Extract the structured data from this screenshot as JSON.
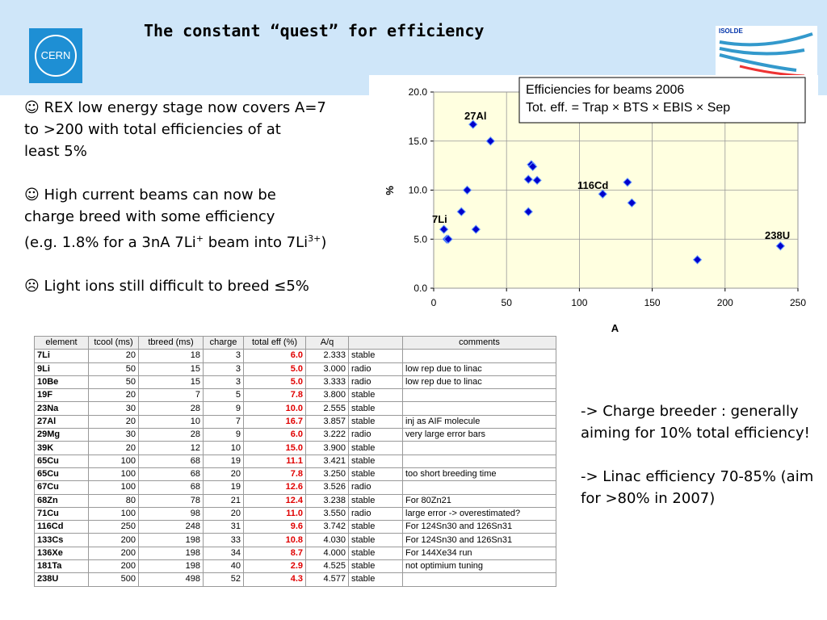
{
  "title": "The constant “quest” for efficiency",
  "logos": {
    "cern": "CERN",
    "isolde": "ISOLDE"
  },
  "bullets": [
    {
      "lines": [
        "☺ REX low energy stage now covers A=7",
        "to >200 with total efficiencies of at",
        "least 5%"
      ]
    },
    {
      "lines": [
        "☺ High current beams can now be",
        "charge breed with some efficiency"
      ],
      "last": [
        "(e.g. 1.8% for a 3nA 7Li",
        "+",
        " beam into 7Li",
        "3+",
        ")"
      ]
    },
    {
      "lines": [
        "☹ Light ions still difficult to breed ≤5%"
      ]
    }
  ],
  "chart_data": {
    "type": "scatter",
    "legend_lines": [
      "Efficiencies for beams 2006",
      "Tot. eff. = Trap × BTS × EBIS × Sep"
    ],
    "xlabel": "A",
    "ylabel": "%",
    "x": [
      7,
      9,
      10,
      19,
      23,
      27,
      29,
      39,
      65,
      65,
      67,
      68,
      71,
      116,
      133,
      136,
      181,
      238
    ],
    "series": [
      {
        "name": "Efficiencies for beams 2006",
        "color": "#0000cc",
        "values": [
          6.0,
          5.0,
          5.0,
          7.8,
          10.0,
          16.7,
          6.0,
          15.0,
          11.1,
          7.8,
          12.6,
          12.4,
          11.0,
          9.6,
          10.8,
          8.7,
          2.9,
          4.3
        ]
      }
    ],
    "xlim": [
      0,
      250
    ],
    "xticks": [
      0,
      50,
      100,
      150,
      200,
      250
    ],
    "ylim": [
      0,
      20
    ],
    "yticks": [
      {
        "value": 0,
        "label": "0.0"
      },
      {
        "value": 5,
        "label": "5.0"
      },
      {
        "value": 10,
        "label": "10.0"
      },
      {
        "value": 15,
        "label": "15.0"
      },
      {
        "value": 20,
        "label": "20.0"
      }
    ],
    "grid": true,
    "annotations": [
      "27Al",
      "116Cd",
      "7Li",
      "238U"
    ]
  },
  "table": {
    "header": [
      "element",
      "tcool (ms)",
      "tbreed (ms)",
      "charge",
      "total eff (%)",
      "A/q",
      "comments"
    ],
    "rows": [
      {
        "cells": [
          "7Li",
          "20",
          "18",
          "3",
          "6.0",
          "2.333",
          "stable"
        ]
      },
      {
        "cells": [
          "9Li",
          "50",
          "15",
          "3",
          "5.0",
          "3.000",
          "radio"
        ],
        "comment": "low rep due to linac"
      },
      {
        "cells": [
          "10Be",
          "50",
          "15",
          "3",
          "5.0",
          "3.333",
          "radio"
        ],
        "comment": "low rep due to linac"
      },
      {
        "cells": [
          "19F",
          "20",
          "7",
          "5",
          "7.8",
          "3.800",
          "stable"
        ]
      },
      {
        "cells": [
          "23Na",
          "30",
          "28",
          "9",
          "10.0",
          "2.555",
          "stable"
        ]
      },
      {
        "cells": [
          "27Al",
          "20",
          "10",
          "7",
          "16.7",
          "3.857",
          "stable"
        ],
        "comment": "inj as AIF molecule"
      },
      {
        "cells": [
          "29Mg",
          "30",
          "28",
          "9",
          "6.0",
          "3.222",
          "radio"
        ],
        "comment": "very large error bars"
      },
      {
        "cells": [
          "39K",
          "20",
          "12",
          "10",
          "15.0",
          "3.900",
          "stable"
        ]
      },
      {
        "cells": [
          "65Cu",
          "100",
          "68",
          "19",
          "11.1",
          "3.421",
          "stable"
        ]
      },
      {
        "cells": [
          "65Cu",
          "100",
          "68",
          "20",
          "7.8",
          "3.250",
          "stable"
        ],
        "comment": "too short breeding time"
      },
      {
        "cells": [
          "67Cu",
          "100",
          "68",
          "19",
          "12.6",
          "3.526",
          "radio"
        ]
      },
      {
        "cells": [
          "68Zn",
          "80",
          "78",
          "21",
          "12.4",
          "3.238",
          "stable"
        ],
        "comment": "For 80Zn21"
      },
      {
        "cells": [
          "71Cu",
          "100",
          "98",
          "20",
          "11.0",
          "3.550",
          "radio"
        ],
        "comment": "large error -> overestimated?"
      },
      {
        "cells": [
          "116Cd",
          "250",
          "248",
          "31",
          "9.6",
          "3.742",
          "stable"
        ],
        "comment": "For 124Sn30 and 126Sn31"
      },
      {
        "cells": [
          "133Cs",
          "200",
          "198",
          "33",
          "10.8",
          "4.030",
          "stable"
        ],
        "comment": "For 124Sn30 and 126Sn31"
      },
      {
        "cells": [
          "136Xe",
          "200",
          "198",
          "34",
          "8.7",
          "4.000",
          "stable"
        ],
        "comment": "For 144Xe34 run"
      },
      {
        "cells": [
          "181Ta",
          "200",
          "198",
          "40",
          "2.9",
          "4.525",
          "stable"
        ],
        "comment": "not optimium tuning"
      },
      {
        "cells": [
          "238U",
          "500",
          "498",
          "52",
          "4.3",
          "4.577",
          "stable"
        ]
      }
    ]
  },
  "notes": [
    "-> Charge breeder : generally aiming for 10% total efficiency!",
    "-> Linac efficiency 70-85% (aim for >80% in 2007)"
  ]
}
